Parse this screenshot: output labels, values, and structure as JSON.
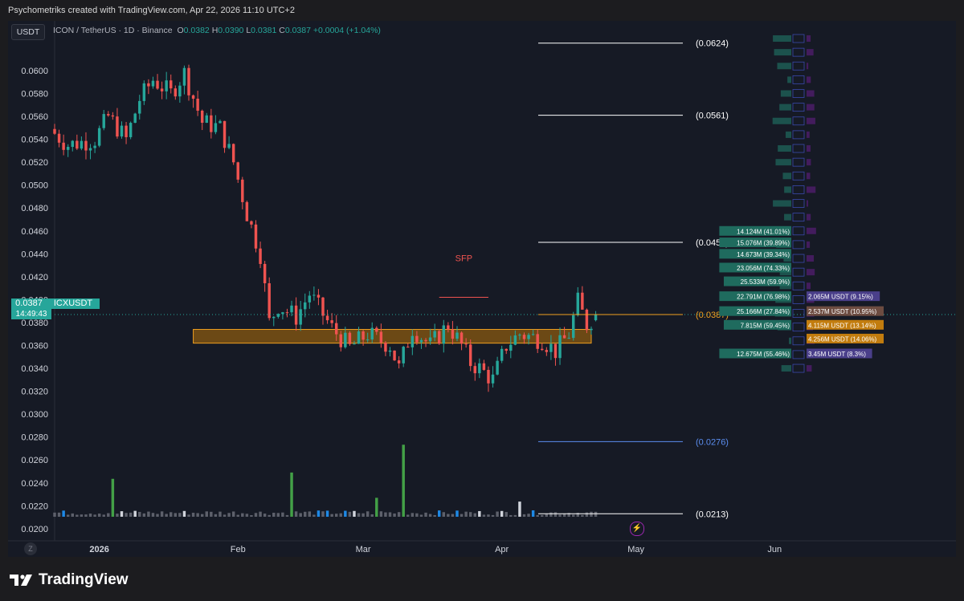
{
  "header": {
    "credit": "Psychometriks created with TradingView.com, Apr 22, 2026 11:10 UTC+2"
  },
  "toolbar": {
    "currency": "USDT"
  },
  "legend": {
    "title": "ICON / TetherUS · 1D · Binance",
    "o_label": "O",
    "o": "0.0382",
    "h_label": "H",
    "h": "0.0390",
    "l_label": "L",
    "l": "0.0381",
    "c_label": "C",
    "c": "0.0387",
    "change": "+0.0004 (+1.04%)"
  },
  "price_tag": {
    "price": "0.0387",
    "symbol": "ICXUSDT",
    "countdown": "14:49:43"
  },
  "brand": {
    "name": "TradingView"
  },
  "bottom": {
    "z_button": "Z"
  },
  "colors": {
    "background": "#161a25",
    "up": "#26a69a",
    "down": "#ef5350",
    "zone_fill": "#8a5a10",
    "zone_border": "#f0a020",
    "current_price": "#f0a020",
    "level_white": "#ffffff",
    "level_blue": "#5b8def",
    "sfp": "#ef5350"
  },
  "icons": {
    "brand_logo": "tradingview-logo-icon",
    "bolt": "lightning-bolt-icon"
  },
  "chart_data": {
    "type": "candlestick",
    "title": "ICON / TetherUS · 1D · Binance",
    "yticks": [
      "0.0600",
      "0.0580",
      "0.0560",
      "0.0540",
      "0.0520",
      "0.0500",
      "0.0480",
      "0.0460",
      "0.0440",
      "0.0420",
      "0.0400",
      "0.0380",
      "0.0360",
      "0.0340",
      "0.0320",
      "0.0300",
      "0.0280",
      "0.0260",
      "0.0240",
      "0.0220",
      "0.0200"
    ],
    "ylim": [
      0.0195,
      0.0628
    ],
    "xlim": [
      "2025-12-22",
      "2026-06-20"
    ],
    "xticks": [
      {
        "label": "2026",
        "date": "2026-01-01"
      },
      {
        "label": "Feb",
        "date": "2026-02-01"
      },
      {
        "label": "Mar",
        "date": "2026-03-01"
      },
      {
        "label": "Apr",
        "date": "2026-04-01"
      },
      {
        "label": "May",
        "date": "2026-05-01"
      },
      {
        "label": "Jun",
        "date": "2026-06-01"
      }
    ],
    "candle_anchors": [
      {
        "date": "2025-12-22",
        "close": 0.0545
      },
      {
        "date": "2025-12-25",
        "close": 0.0535
      },
      {
        "date": "2025-12-31",
        "close": 0.054
      },
      {
        "date": "2026-01-03",
        "close": 0.056
      },
      {
        "date": "2026-01-07",
        "close": 0.054
      },
      {
        "date": "2026-01-10",
        "close": 0.0575
      },
      {
        "date": "2026-01-13",
        "close": 0.0592
      },
      {
        "date": "2026-01-17",
        "close": 0.058
      },
      {
        "date": "2026-01-20",
        "close": 0.0598
      },
      {
        "date": "2026-01-24",
        "close": 0.0555
      },
      {
        "date": "2026-01-28",
        "close": 0.055
      },
      {
        "date": "2026-01-31",
        "close": 0.052
      },
      {
        "date": "2026-02-03",
        "close": 0.0475
      },
      {
        "date": "2026-02-06",
        "close": 0.044
      },
      {
        "date": "2026-02-08",
        "close": 0.038
      },
      {
        "date": "2026-02-10",
        "close": 0.0395
      },
      {
        "date": "2026-02-14",
        "close": 0.0385
      },
      {
        "date": "2026-02-17",
        "close": 0.0405
      },
      {
        "date": "2026-02-22",
        "close": 0.0375
      },
      {
        "date": "2026-02-26",
        "close": 0.0358
      },
      {
        "date": "2026-03-02",
        "close": 0.037
      },
      {
        "date": "2026-03-07",
        "close": 0.036
      },
      {
        "date": "2026-03-09",
        "close": 0.034
      },
      {
        "date": "2026-03-12",
        "close": 0.0375
      },
      {
        "date": "2026-03-16",
        "close": 0.036
      },
      {
        "date": "2026-03-20",
        "close": 0.0378
      },
      {
        "date": "2026-03-23",
        "close": 0.036
      },
      {
        "date": "2026-03-25",
        "close": 0.0345
      },
      {
        "date": "2026-03-27",
        "close": 0.034
      },
      {
        "date": "2026-03-30",
        "close": 0.033
      },
      {
        "date": "2026-04-02",
        "close": 0.036
      },
      {
        "date": "2026-04-05",
        "close": 0.037
      },
      {
        "date": "2026-04-10",
        "close": 0.0365
      },
      {
        "date": "2026-04-13",
        "close": 0.0355
      },
      {
        "date": "2026-04-16",
        "close": 0.037
      },
      {
        "date": "2026-04-18",
        "close": 0.0398
      },
      {
        "date": "2026-04-20",
        "close": 0.0378
      },
      {
        "date": "2026-04-22",
        "close": 0.0387
      }
    ],
    "last_candle": {
      "date": "2026-04-22",
      "open": 0.0382,
      "high": 0.039,
      "low": 0.0381,
      "close": 0.0387
    },
    "volume_spikes": [
      {
        "date": "2026-01-04",
        "level": 0.3,
        "color": "green"
      },
      {
        "date": "2026-02-13",
        "level": 0.35,
        "color": "green"
      },
      {
        "date": "2026-03-04",
        "level": 0.15,
        "color": "green"
      },
      {
        "date": "2026-03-10",
        "level": 0.57,
        "color": "green"
      },
      {
        "date": "2026-04-05",
        "level": 0.12,
        "color": "white"
      }
    ],
    "levels": [
      {
        "label": "(0.0624)",
        "price": 0.0624,
        "color": "white"
      },
      {
        "label": "(0.0561)",
        "price": 0.0561,
        "color": "white"
      },
      {
        "label": "(0.0450)",
        "price": 0.045,
        "color": "white"
      },
      {
        "label": "(0.0387)",
        "price": 0.0387,
        "color": "orange"
      },
      {
        "label": "(0.0276)",
        "price": 0.0276,
        "color": "blue"
      },
      {
        "label": "(0.0213)",
        "price": 0.0213,
        "color": "white"
      }
    ],
    "zone": {
      "price_low": 0.0362,
      "price_high": 0.0374,
      "date_from": "2026-01-22",
      "date_to": "2026-04-21"
    },
    "sfp": {
      "label": "SFP",
      "price": 0.0402,
      "date_from": "2026-03-18",
      "date_to": "2026-03-29"
    },
    "profile_labels": [
      {
        "left": "14.124M (41.01%)",
        "price": 0.046
      },
      {
        "left": "15.076M (39.89%)",
        "price": 0.045
      },
      {
        "left": "14.673M (39.34%)",
        "price": 0.044
      },
      {
        "left": "23.056M (74.33%)",
        "price": 0.0428
      },
      {
        "left": "25.533M (59.9%)",
        "price": 0.0416
      },
      {
        "left": "22.791M (76.98%)",
        "right": "2.065M USDT (9.15%)",
        "price": 0.0403
      },
      {
        "left": "25.166M (27.84%)",
        "right": "2.537M USDT (10.95%)",
        "price": 0.039
      },
      {
        "left": "7.815M (59.45%)",
        "right": "4.115M USDT (13.14%)",
        "price": 0.0378
      },
      {
        "left": "",
        "right": "4.256M USDT (14.06%)",
        "price": 0.0366
      },
      {
        "left": "12.675M (55.46%)",
        "right": "3.45M USDT (8.3%)",
        "price": 0.0353
      }
    ]
  }
}
